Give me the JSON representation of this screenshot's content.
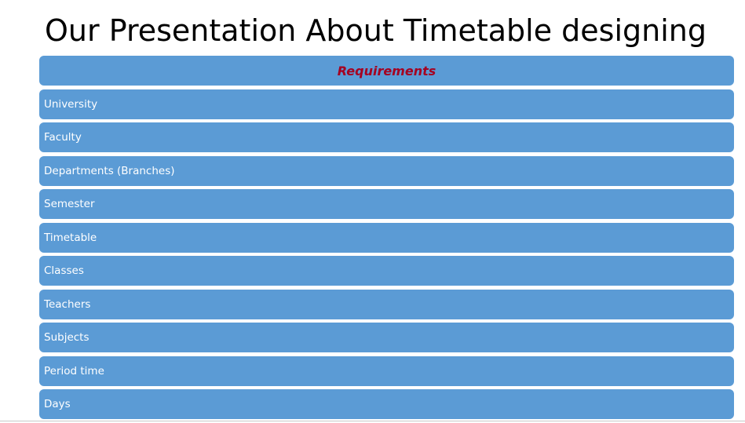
{
  "slide": {
    "title": "Our Presentation About Timetable designing"
  },
  "requirements": {
    "header": "Requirements",
    "items": [
      "University",
      "Faculty",
      "Departments (Branches)",
      "Semester",
      "Timetable",
      "Classes",
      "Teachers",
      "Subjects",
      "Period time",
      "Days"
    ]
  },
  "colors": {
    "bar_fill": "#5b9bd5",
    "bar_text": "#ffffff",
    "header_text": "#a50021"
  }
}
